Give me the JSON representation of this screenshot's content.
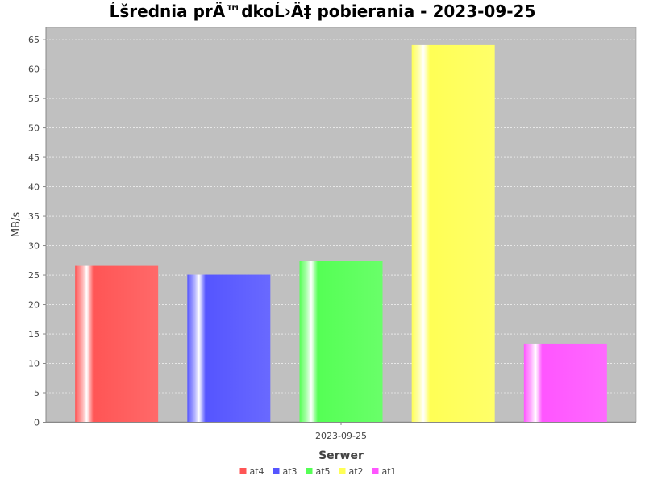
{
  "chart_data": {
    "type": "bar",
    "title": "Ĺšrednia prÄ™dkoĹ›Ä‡ pobierania - 2023-09-25",
    "xlabel": "Serwer",
    "ylabel": "MB/s",
    "categories": [
      "2023-09-25"
    ],
    "ylim": [
      0,
      67
    ],
    "yticks": [
      0,
      5,
      10,
      15,
      20,
      25,
      30,
      35,
      40,
      45,
      50,
      55,
      60,
      65
    ],
    "grid": true,
    "legend_position": "bottom",
    "series": [
      {
        "name": "at4",
        "values": [
          26.5
        ],
        "color": "#ff5555"
      },
      {
        "name": "at3",
        "values": [
          25.0
        ],
        "color": "#5555ff"
      },
      {
        "name": "at5",
        "values": [
          27.3
        ],
        "color": "#55ff55"
      },
      {
        "name": "at2",
        "values": [
          64.0
        ],
        "color": "#ffff55"
      },
      {
        "name": "at1",
        "values": [
          13.3
        ],
        "color": "#ff55ff"
      }
    ],
    "plot_background": "#c0c0c0",
    "gridline_color": "#ffffff"
  }
}
